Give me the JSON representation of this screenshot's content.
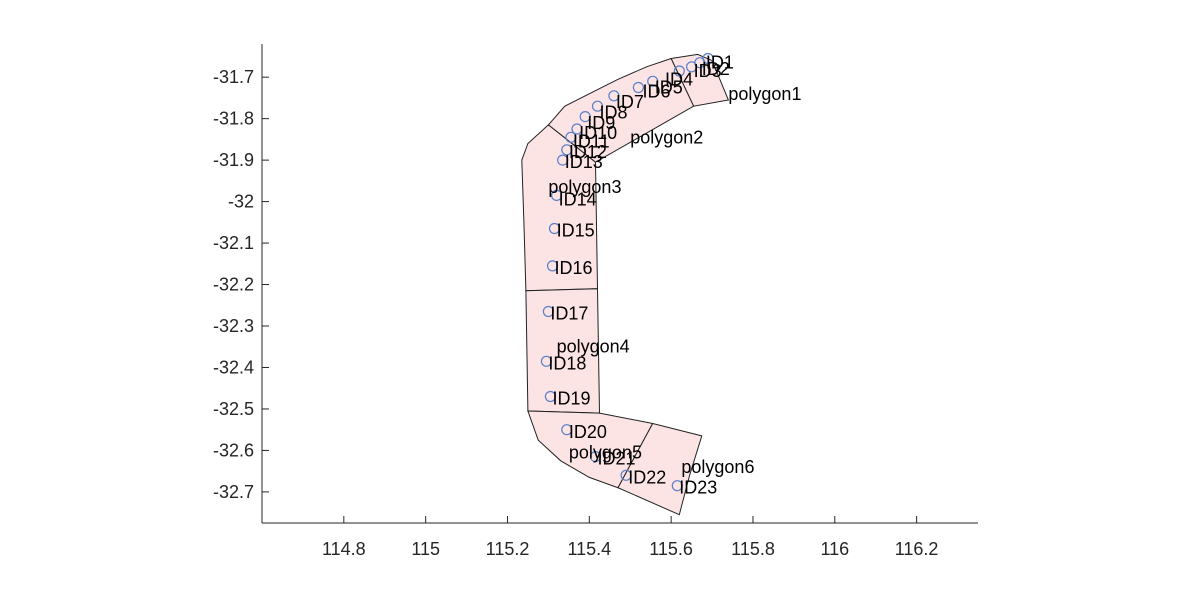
{
  "chart_data": {
    "type": "scatter",
    "title": "",
    "xlabel": "",
    "ylabel": "",
    "xlim": [
      114.6,
      116.35
    ],
    "ylim": [
      -32.775,
      -31.62
    ],
    "x_ticks": [
      "114.8",
      "115",
      "115.2",
      "115.4",
      "115.6",
      "115.8",
      "116",
      "116.2"
    ],
    "x_tick_values": [
      114.8,
      115.0,
      115.2,
      115.4,
      115.6,
      115.8,
      116.0,
      116.2
    ],
    "y_ticks": [
      "-31.7",
      "-31.8",
      "-31.9",
      "-32",
      "-32.1",
      "-32.2",
      "-32.3",
      "-32.4",
      "-32.5",
      "-32.6",
      "-32.7"
    ],
    "y_tick_values": [
      -31.7,
      -31.8,
      -31.9,
      -32.0,
      -32.1,
      -32.2,
      -32.3,
      -32.4,
      -32.5,
      -32.6,
      -32.7
    ],
    "grid": false,
    "colors": {
      "polygon_fill": "#fce4e4",
      "polygon_edge": "#222222",
      "marker": "#5b7fc8"
    },
    "polygons": [
      {
        "name": "polygon1",
        "label_at": [
          115.74,
          -31.74
        ],
        "vertices": [
          [
            115.6,
            -31.655
          ],
          [
            115.665,
            -31.645
          ],
          [
            115.7,
            -31.66
          ],
          [
            115.74,
            -31.755
          ],
          [
            115.655,
            -31.77
          ]
        ]
      },
      {
        "name": "polygon2",
        "label_at": [
          115.5,
          -31.845
        ],
        "vertices": [
          [
            115.6,
            -31.655
          ],
          [
            115.655,
            -31.77
          ],
          [
            115.415,
            -31.905
          ],
          [
            115.3,
            -31.815
          ],
          [
            115.34,
            -31.77
          ],
          [
            115.41,
            -31.735
          ],
          [
            115.47,
            -31.705
          ],
          [
            115.54,
            -31.675
          ]
        ]
      },
      {
        "name": "polygon3",
        "label_at": [
          115.3,
          -31.965
        ],
        "vertices": [
          [
            115.3,
            -31.815
          ],
          [
            115.415,
            -31.905
          ],
          [
            115.42,
            -32.21
          ],
          [
            115.245,
            -32.215
          ],
          [
            115.24,
            -32.05
          ],
          [
            115.235,
            -31.9
          ],
          [
            115.25,
            -31.86
          ]
        ]
      },
      {
        "name": "polygon4",
        "label_at": [
          115.32,
          -32.35
        ],
        "vertices": [
          [
            115.245,
            -32.215
          ],
          [
            115.42,
            -32.21
          ],
          [
            115.425,
            -32.51
          ],
          [
            115.25,
            -32.505
          ]
        ]
      },
      {
        "name": "polygon5",
        "label_at": [
          115.35,
          -32.605
        ],
        "vertices": [
          [
            115.25,
            -32.505
          ],
          [
            115.425,
            -32.51
          ],
          [
            115.555,
            -32.535
          ],
          [
            115.47,
            -32.69
          ],
          [
            115.4,
            -32.665
          ],
          [
            115.33,
            -32.625
          ],
          [
            115.275,
            -32.575
          ]
        ]
      },
      {
        "name": "polygon6",
        "label_at": [
          115.625,
          -32.64
        ],
        "vertices": [
          [
            115.555,
            -32.535
          ],
          [
            115.675,
            -32.565
          ],
          [
            115.645,
            -32.66
          ],
          [
            115.62,
            -32.755
          ],
          [
            115.47,
            -32.69
          ]
        ]
      }
    ],
    "points": [
      {
        "label": "ID1",
        "x": 115.69,
        "y": -31.655,
        "lx": 115.685,
        "ly": -31.665
      },
      {
        "label": "ID2",
        "x": 115.67,
        "y": -31.665,
        "lx": 115.675,
        "ly": -31.68
      },
      {
        "label": "ID3",
        "x": 115.65,
        "y": -31.675,
        "lx": 115.655,
        "ly": -31.685
      },
      {
        "label": "ID4",
        "x": 115.62,
        "y": -31.685,
        "lx": 115.585,
        "ly": -31.705
      },
      {
        "label": "ID5",
        "x": 115.555,
        "y": -31.71,
        "lx": 115.56,
        "ly": -31.725
      },
      {
        "label": "ID6",
        "x": 115.52,
        "y": -31.725,
        "lx": 115.53,
        "ly": -31.735
      },
      {
        "label": "ID7",
        "x": 115.46,
        "y": -31.745,
        "lx": 115.465,
        "ly": -31.76
      },
      {
        "label": "ID8",
        "x": 115.42,
        "y": -31.77,
        "lx": 115.425,
        "ly": -31.785
      },
      {
        "label": "ID9",
        "x": 115.39,
        "y": -31.795,
        "lx": 115.395,
        "ly": -31.81
      },
      {
        "label": "ID10",
        "x": 115.37,
        "y": -31.825,
        "lx": 115.375,
        "ly": -31.835
      },
      {
        "label": "ID11",
        "x": 115.355,
        "y": -31.845,
        "lx": 115.36,
        "ly": -31.855
      },
      {
        "label": "ID12",
        "x": 115.345,
        "y": -31.875,
        "lx": 115.35,
        "ly": -31.88
      },
      {
        "label": "ID13",
        "x": 115.335,
        "y": -31.9,
        "lx": 115.34,
        "ly": -31.905
      },
      {
        "label": "ID14",
        "x": 115.32,
        "y": -31.985,
        "lx": 115.325,
        "ly": -31.995
      },
      {
        "label": "ID15",
        "x": 115.315,
        "y": -32.065,
        "lx": 115.32,
        "ly": -32.07
      },
      {
        "label": "ID16",
        "x": 115.31,
        "y": -32.155,
        "lx": 115.315,
        "ly": -32.16
      },
      {
        "label": "ID17",
        "x": 115.3,
        "y": -32.265,
        "lx": 115.305,
        "ly": -32.27
      },
      {
        "label": "ID18",
        "x": 115.295,
        "y": -32.385,
        "lx": 115.3,
        "ly": -32.39
      },
      {
        "label": "ID19",
        "x": 115.305,
        "y": -32.47,
        "lx": 115.31,
        "ly": -32.475
      },
      {
        "label": "ID20",
        "x": 115.345,
        "y": -32.55,
        "lx": 115.35,
        "ly": -32.555
      },
      {
        "label": "ID21",
        "x": 115.415,
        "y": -32.615,
        "lx": 115.42,
        "ly": -32.62
      },
      {
        "label": "ID22",
        "x": 115.49,
        "y": -32.66,
        "lx": 115.495,
        "ly": -32.665
      },
      {
        "label": "ID23",
        "x": 115.615,
        "y": -32.685,
        "lx": 115.62,
        "ly": -32.69
      }
    ]
  }
}
